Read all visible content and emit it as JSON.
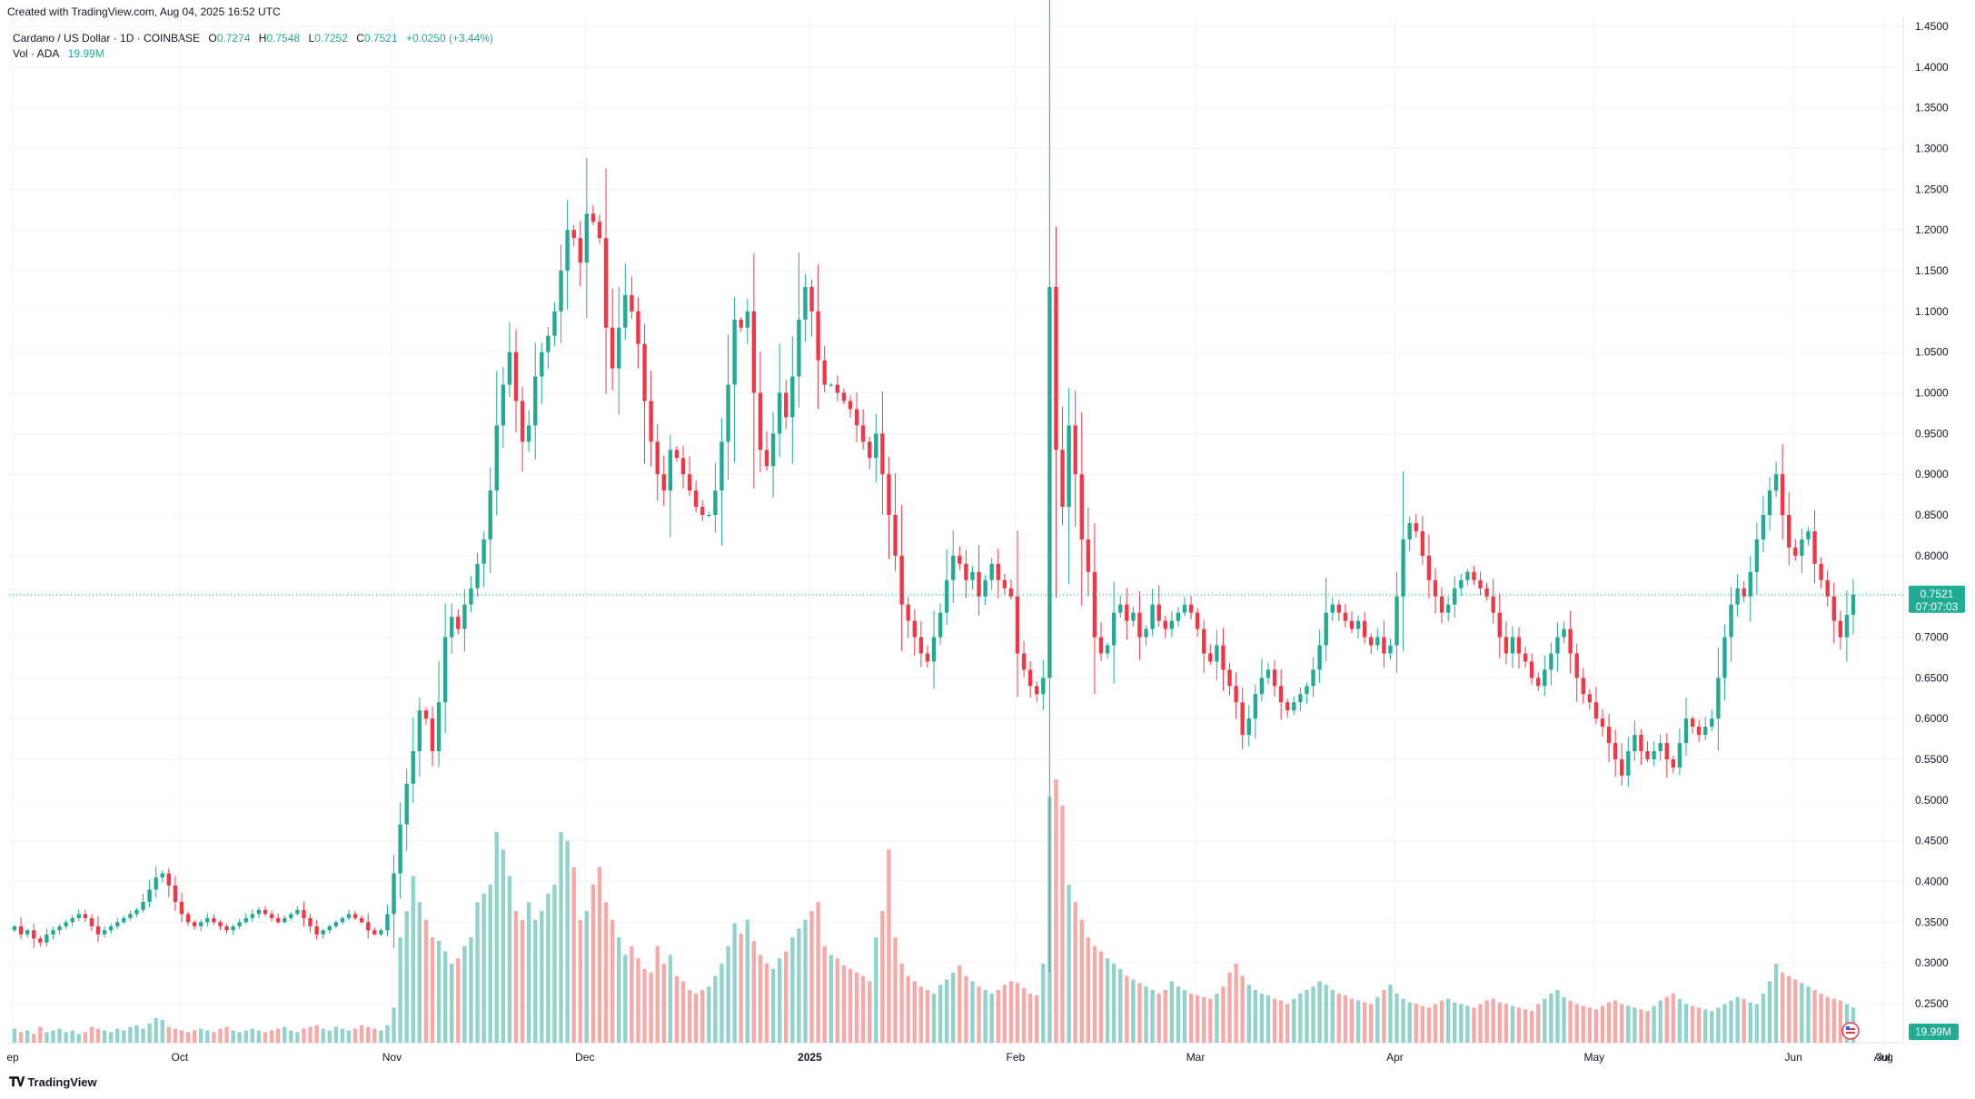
{
  "caption": "Created with TradingView.com, Aug 04, 2025 16:52 UTC",
  "legend": {
    "symbol": "Cardano / US Dollar · 1D · COINBASE",
    "o_label": "O",
    "o_value": "0.7274",
    "h_label": "H",
    "h_value": "0.7548",
    "l_label": "L",
    "l_value": "0.7252",
    "c_label": "C",
    "c_value": "0.7521",
    "change": "+0.0250 (+3.44%)",
    "vol_label": "Vol · ADA",
    "vol_value": "19.99M"
  },
  "price_tag": {
    "price": "0.7521",
    "countdown": "07:07:03"
  },
  "volume_tag": "19.99M",
  "brand": "TradingView",
  "colors": {
    "up": "#22ab94",
    "down": "#f23645",
    "up_vol": "#92d2cc",
    "down_vol": "#f7a9a7",
    "grid": "#f0f3fa",
    "text": "#131722"
  },
  "chart_data": {
    "type": "candlestick",
    "x_labels": [
      "ep",
      "Oct",
      "Nov",
      "Dec",
      "2025",
      "Feb",
      "Mar",
      "Apr",
      "May",
      "Jun",
      "Jul",
      "Aug"
    ],
    "y_labels": [
      "1.4500",
      "1.4000",
      "1.3500",
      "1.3000",
      "1.2500",
      "1.2000",
      "1.1500",
      "1.1000",
      "1.0500",
      "1.0000",
      "0.9500",
      "0.9000",
      "0.8500",
      "0.8000",
      "0.7500",
      "0.7000",
      "0.6500",
      "0.6000",
      "0.5500",
      "0.5000",
      "0.4500",
      "0.4000",
      "0.3500",
      "0.3000",
      "0.2500"
    ],
    "ylim": [
      0.22,
      1.46
    ],
    "last_price": 0.7521,
    "closes": [
      0.345,
      0.335,
      0.34,
      0.33,
      0.325,
      0.335,
      0.34,
      0.345,
      0.35,
      0.355,
      0.36,
      0.355,
      0.345,
      0.335,
      0.34,
      0.345,
      0.35,
      0.355,
      0.36,
      0.365,
      0.375,
      0.39,
      0.405,
      0.41,
      0.395,
      0.375,
      0.36,
      0.35,
      0.345,
      0.35,
      0.355,
      0.35,
      0.345,
      0.34,
      0.345,
      0.35,
      0.355,
      0.36,
      0.365,
      0.36,
      0.355,
      0.35,
      0.355,
      0.36,
      0.365,
      0.355,
      0.345,
      0.335,
      0.34,
      0.345,
      0.35,
      0.355,
      0.36,
      0.355,
      0.35,
      0.34,
      0.335,
      0.34,
      0.36,
      0.41,
      0.47,
      0.52,
      0.56,
      0.61,
      0.6,
      0.56,
      0.62,
      0.7,
      0.725,
      0.71,
      0.74,
      0.76,
      0.79,
      0.82,
      0.88,
      0.96,
      1.01,
      1.05,
      0.99,
      0.94,
      0.96,
      1.02,
      1.05,
      1.07,
      1.1,
      1.15,
      1.2,
      1.19,
      1.16,
      1.22,
      1.21,
      1.19,
      1.08,
      1.03,
      1.08,
      1.12,
      1.1,
      1.06,
      0.99,
      0.94,
      0.9,
      0.88,
      0.93,
      0.92,
      0.9,
      0.88,
      0.86,
      0.85,
      0.85,
      0.88,
      0.94,
      1.01,
      1.09,
      1.08,
      1.1,
      1.0,
      0.93,
      0.91,
      0.95,
      1.0,
      0.97,
      1.02,
      1.09,
      1.13,
      1.1,
      1.04,
      1.01,
      1.01,
      1.0,
      0.99,
      0.98,
      0.96,
      0.94,
      0.92,
      0.95,
      0.9,
      0.85,
      0.8,
      0.74,
      0.72,
      0.7,
      0.68,
      0.67,
      0.7,
      0.73,
      0.77,
      0.8,
      0.79,
      0.77,
      0.78,
      0.75,
      0.77,
      0.79,
      0.77,
      0.76,
      0.75,
      0.68,
      0.66,
      0.64,
      0.63,
      0.65,
      1.13,
      0.93,
      0.86,
      0.96,
      0.9,
      0.82,
      0.78,
      0.7,
      0.68,
      0.69,
      0.73,
      0.74,
      0.72,
      0.73,
      0.7,
      0.71,
      0.74,
      0.72,
      0.71,
      0.72,
      0.73,
      0.74,
      0.73,
      0.71,
      0.68,
      0.67,
      0.69,
      0.66,
      0.64,
      0.62,
      0.58,
      0.6,
      0.63,
      0.65,
      0.66,
      0.64,
      0.62,
      0.61,
      0.62,
      0.63,
      0.64,
      0.66,
      0.69,
      0.73,
      0.74,
      0.73,
      0.72,
      0.71,
      0.72,
      0.7,
      0.69,
      0.7,
      0.68,
      0.69,
      0.75,
      0.82,
      0.84,
      0.83,
      0.8,
      0.77,
      0.75,
      0.73,
      0.74,
      0.76,
      0.77,
      0.78,
      0.77,
      0.76,
      0.75,
      0.73,
      0.7,
      0.68,
      0.7,
      0.68,
      0.67,
      0.65,
      0.64,
      0.66,
      0.68,
      0.7,
      0.71,
      0.68,
      0.65,
      0.63,
      0.62,
      0.6,
      0.59,
      0.57,
      0.55,
      0.53,
      0.56,
      0.58,
      0.56,
      0.55,
      0.56,
      0.57,
      0.55,
      0.54,
      0.57,
      0.6,
      0.59,
      0.58,
      0.59,
      0.6,
      0.65,
      0.7,
      0.74,
      0.76,
      0.75,
      0.78,
      0.82,
      0.85,
      0.88,
      0.9,
      0.85,
      0.81,
      0.8,
      0.82,
      0.83,
      0.79,
      0.77,
      0.75,
      0.72,
      0.7,
      0.7274,
      0.7521
    ],
    "volumes_m": [
      8,
      6,
      7,
      5,
      9,
      6,
      7,
      8,
      6,
      7,
      5,
      6,
      9,
      8,
      7,
      6,
      8,
      7,
      9,
      10,
      8,
      11,
      14,
      13,
      9,
      8,
      7,
      6,
      7,
      8,
      7,
      6,
      8,
      9,
      7,
      6,
      7,
      8,
      7,
      6,
      7,
      8,
      9,
      7,
      6,
      8,
      9,
      10,
      8,
      7,
      9,
      8,
      7,
      8,
      10,
      9,
      8,
      7,
      10,
      20,
      60,
      75,
      95,
      80,
      70,
      60,
      58,
      52,
      45,
      48,
      55,
      60,
      80,
      85,
      90,
      120,
      110,
      95,
      75,
      70,
      80,
      70,
      75,
      85,
      90,
      120,
      115,
      100,
      70,
      75,
      90,
      100,
      80,
      70,
      60,
      50,
      55,
      48,
      42,
      40,
      55,
      45,
      50,
      38,
      35,
      30,
      28,
      30,
      32,
      38,
      45,
      55,
      68,
      62,
      70,
      58,
      50,
      45,
      42,
      48,
      52,
      60,
      65,
      70,
      75,
      80,
      55,
      50,
      48,
      44,
      42,
      40,
      38,
      35,
      60,
      75,
      110,
      60,
      45,
      38,
      35,
      32,
      30,
      28,
      33,
      36,
      40,
      44,
      38,
      35,
      32,
      30,
      28,
      30,
      33,
      35,
      34,
      31,
      28,
      27,
      45,
      140,
      150,
      135,
      90,
      80,
      70,
      60,
      55,
      52,
      48,
      45,
      42,
      38,
      36,
      34,
      32,
      30,
      28,
      30,
      35,
      32,
      30,
      28,
      27,
      26,
      25,
      28,
      32,
      40,
      45,
      38,
      33,
      30,
      28,
      27,
      25,
      24,
      22,
      25,
      28,
      30,
      32,
      35,
      33,
      30,
      28,
      27,
      25,
      24,
      23,
      22,
      26,
      30,
      33,
      28,
      25,
      23,
      22,
      21,
      20,
      22,
      24,
      25,
      23,
      22,
      21,
      20,
      22,
      24,
      25,
      23,
      22,
      21,
      20,
      19,
      18,
      22,
      25,
      28,
      30,
      26,
      24,
      22,
      21,
      20,
      19,
      21,
      23,
      24,
      22,
      21,
      20,
      19,
      18,
      21,
      24,
      26,
      28,
      25,
      22,
      21,
      20,
      19,
      18,
      20,
      22,
      24,
      26,
      25,
      23,
      22,
      28,
      35,
      45,
      40,
      38,
      36,
      34,
      32,
      30,
      28,
      26,
      25,
      24,
      22,
      20,
      19.99
    ],
    "time_axis_start_day": 0
  }
}
